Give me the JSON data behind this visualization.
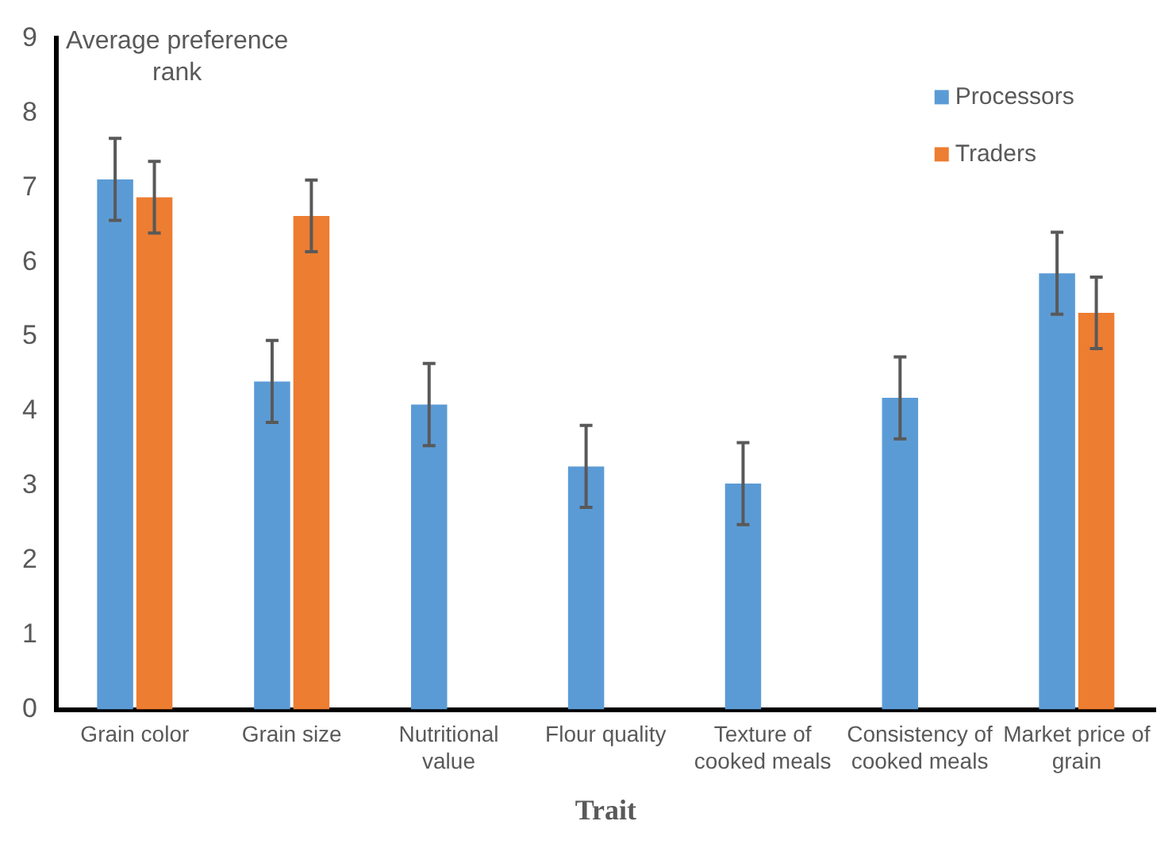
{
  "chart_data": {
    "type": "bar",
    "xlabel": "Trait",
    "ylabel": "Average preference rank",
    "categories": [
      "Grain color",
      "Grain size",
      "Nutritional value",
      "Flour quality",
      "Texture of cooked meals",
      "Consistency of cooked meals",
      "Market price of grain"
    ],
    "series": [
      {
        "name": "Processors",
        "color": "#5b9bd5",
        "values": [
          7.11,
          4.4,
          4.09,
          3.26,
          3.03,
          4.18,
          5.85
        ],
        "errors": [
          0.55,
          0.55,
          0.55,
          0.55,
          0.55,
          0.55,
          0.55
        ]
      },
      {
        "name": "Traders",
        "color": "#ed7d31",
        "values": [
          6.87,
          6.62,
          null,
          null,
          null,
          null,
          5.32
        ],
        "errors": [
          0.48,
          0.48,
          null,
          null,
          null,
          null,
          0.48
        ]
      }
    ],
    "ylim": [
      0,
      9
    ],
    "yticks": [
      0,
      1,
      2,
      3,
      4,
      5,
      6,
      7,
      8,
      9
    ],
    "grid": false,
    "legend": "top right"
  }
}
